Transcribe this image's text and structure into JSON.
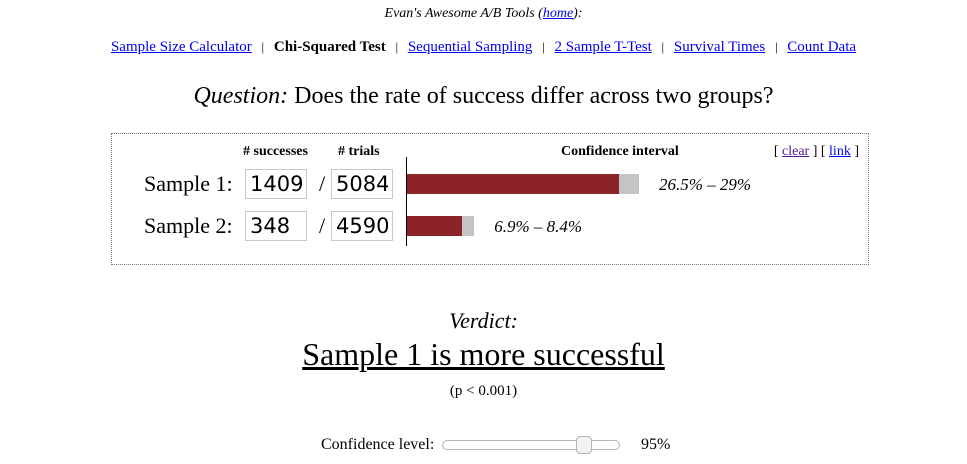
{
  "header": {
    "title_prefix": "Evan's Awesome A/B Tools (",
    "home_link": "home",
    "title_suffix": "):"
  },
  "nav": {
    "items": [
      {
        "label": "Sample Size Calculator",
        "current": false
      },
      {
        "label": "Chi-Squared Test",
        "current": true
      },
      {
        "label": "Sequential Sampling",
        "current": false
      },
      {
        "label": "2 Sample T-Test",
        "current": false
      },
      {
        "label": "Survival Times",
        "current": false
      },
      {
        "label": "Count Data",
        "current": false
      }
    ],
    "separator": "|"
  },
  "question": {
    "label": "Question:",
    "text": "Does the rate of success differ across two groups?"
  },
  "table": {
    "headers": {
      "successes": "# successes",
      "trials": "# trials",
      "ci": "Confidence interval"
    },
    "links": {
      "open": "[",
      "clear": "clear",
      "middle": "] [",
      "link": "link",
      "close": "]"
    },
    "slash": "/",
    "samples": [
      {
        "label": "Sample 1:",
        "successes": "1409",
        "trials": "5084",
        "ci_text": "26.5% – 29%",
        "point_estimate": 0.277,
        "ci_low": 0.265,
        "ci_high": 0.29
      },
      {
        "label": "Sample 2:",
        "successes": "348",
        "trials": "4590",
        "ci_text": "6.9% – 8.4%",
        "point_estimate": 0.076,
        "ci_low": 0.069,
        "ci_high": 0.084
      }
    ]
  },
  "verdict": {
    "label": "Verdict:",
    "text": "Sample 1 is more successful",
    "pvalue": "(p < 0.001)"
  },
  "confidence": {
    "label": "Confidence level:",
    "value_text": "95%",
    "value": 0.95
  },
  "colors": {
    "bar": "#8b2329",
    "ci": "#c4c4c4",
    "link": "#0000ee"
  }
}
